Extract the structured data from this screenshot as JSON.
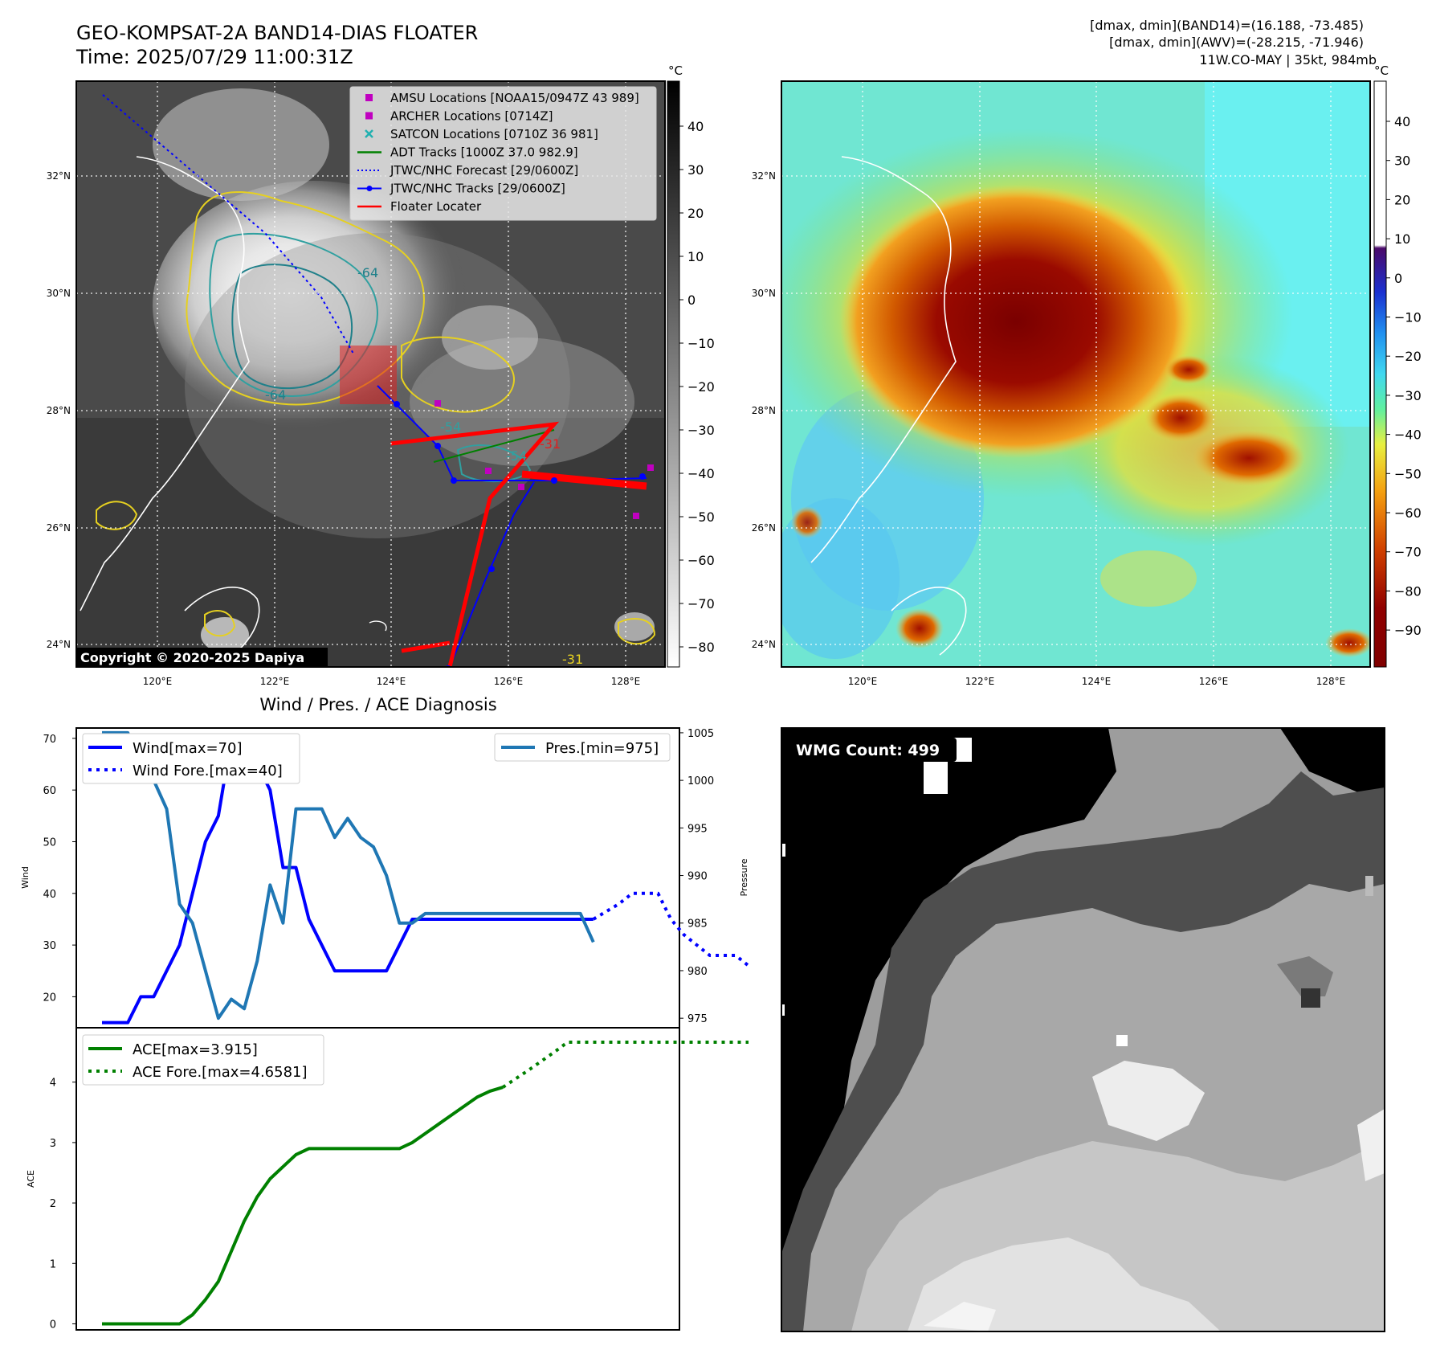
{
  "header": {
    "title_line1": "GEO-KOMPSAT-2A BAND14-DIAS FLOATER",
    "title_line2": "Time: 2025/07/29 11:00:31Z",
    "info_line1": "[dmax, dmin](BAND14)=(16.188, -73.485)",
    "info_line2": "[dmax, dmin](AWV)=(-28.215, -71.946)",
    "info_line3": "11W.CO-MAY | 35kt, 984mb"
  },
  "copyright": "Copyright © 2020-2025 Dapiya",
  "map_axes": {
    "lat_labels": [
      "32°N",
      "30°N",
      "28°N",
      "26°N",
      "24°N"
    ],
    "lon_labels": [
      "120°E",
      "122°E",
      "124°E",
      "126°E",
      "128°E"
    ]
  },
  "colorbar_left": {
    "unit": "°C",
    "ticks": [
      "40",
      "30",
      "20",
      "10",
      "0",
      "−10",
      "−20",
      "−30",
      "−40",
      "−50",
      "−60",
      "−70",
      "−80"
    ]
  },
  "colorbar_right": {
    "unit": "°C",
    "ticks": [
      "40",
      "30",
      "20",
      "10",
      "0",
      "−10",
      "−20",
      "−30",
      "−40",
      "−50",
      "−60",
      "−70",
      "−80",
      "−90"
    ]
  },
  "legend": [
    {
      "label": "AMSU Locations [NOAA15/0947Z 43 989]",
      "marker": "square",
      "color": "#c000c0"
    },
    {
      "label": "ARCHER Locations [0714Z]",
      "marker": "square",
      "color": "#c000c0"
    },
    {
      "label": "SATCON Locations [0710Z 36 981]",
      "marker": "x",
      "color": "#20b0b0"
    },
    {
      "label": "ADT Tracks [1000Z 37.0 982.9]",
      "marker": "line",
      "color": "#008000"
    },
    {
      "label": "JTWC/NHC Forecast [29/0600Z]",
      "marker": "dotted",
      "color": "#0000ff"
    },
    {
      "label": "JTWC/NHC Tracks [29/0600Z]",
      "marker": "line-dot",
      "color": "#0000ff"
    },
    {
      "label": "Floater Locater",
      "marker": "line",
      "color": "#ff0000"
    }
  ],
  "contour_labels": [
    "-64",
    "-64",
    "-54",
    "-54",
    "-31",
    "-31"
  ],
  "wmg": {
    "label": "WMG Count: 499"
  },
  "chart_data": [
    {
      "type": "line",
      "title": "Wind / Pres. / ACE Diagnosis",
      "ylabel": "Wind",
      "ylabel_right": "Pressure",
      "ylim": [
        14,
        72
      ],
      "ylim_right": [
        974,
        1005.5
      ],
      "yticks": [
        20,
        30,
        40,
        50,
        60,
        70
      ],
      "yticks_right": [
        975,
        980,
        985,
        990,
        995,
        1000,
        1005
      ],
      "legend_left": [
        "Wind[max=70]",
        "Wind Fore.[max=40]"
      ],
      "legend_right": [
        "Pres.[min=975]"
      ],
      "series": [
        {
          "name": "Wind[max=70]",
          "color": "#0000ff",
          "style": "solid",
          "x": [
            0,
            1,
            2,
            3,
            4,
            5,
            6,
            7,
            8,
            9,
            10,
            11,
            12,
            13,
            14,
            15,
            16,
            17,
            18,
            19,
            20,
            21,
            22,
            23,
            24,
            25,
            26,
            27,
            28,
            29,
            30,
            31,
            32,
            33,
            34,
            35,
            36,
            37,
            38
          ],
          "values": [
            15,
            15,
            15,
            20,
            20,
            25,
            30,
            40,
            50,
            55,
            70,
            65,
            65,
            60,
            45,
            45,
            35,
            30,
            25,
            25,
            25,
            25,
            25,
            30,
            35,
            35,
            35,
            35,
            35,
            35,
            35,
            35,
            35,
            35,
            35,
            35,
            35,
            35,
            35
          ]
        },
        {
          "name": "Wind Fore.[max=40]",
          "color": "#0000ff",
          "style": "dotted",
          "x": [
            38,
            40,
            41,
            42,
            43,
            44,
            45,
            46,
            47,
            48,
            49,
            50
          ],
          "values": [
            35,
            38,
            40,
            40,
            40,
            35,
            32,
            30,
            28,
            28,
            28,
            26
          ]
        },
        {
          "name": "Pres.[min=975]",
          "color": "#1f77b4",
          "style": "solid",
          "axis": "right",
          "x": [
            0,
            1,
            2,
            3,
            4,
            5,
            6,
            7,
            8,
            9,
            10,
            11,
            12,
            13,
            14,
            15,
            16,
            17,
            18,
            19,
            20,
            21,
            22,
            23,
            24,
            25,
            26,
            27,
            28,
            29,
            30,
            31,
            32,
            33,
            34,
            35,
            36,
            37,
            38
          ],
          "values": [
            1005,
            1005,
            1005,
            1001,
            1000,
            997,
            987,
            985,
            980,
            975,
            977,
            976,
            981,
            989,
            985,
            997,
            997,
            997,
            994,
            996,
            994,
            993,
            990,
            985,
            985,
            986,
            986,
            986,
            986,
            986,
            986,
            986,
            986,
            986,
            986,
            986,
            986,
            986,
            983
          ]
        }
      ]
    },
    {
      "type": "line",
      "ylabel": "ACE",
      "ylim": [
        -0.1,
        4.9
      ],
      "yticks": [
        0,
        1,
        2,
        3,
        4
      ],
      "legend": [
        "ACE[max=3.915]",
        "ACE Fore.[max=4.6581]"
      ],
      "series": [
        {
          "name": "ACE[max=3.915]",
          "color": "#008000",
          "style": "solid",
          "x": [
            0,
            6,
            7,
            8,
            9,
            10,
            11,
            12,
            13,
            14,
            15,
            16,
            17,
            18,
            19,
            20,
            21,
            22,
            23,
            24,
            25,
            26,
            27,
            28,
            29,
            30,
            31
          ],
          "values": [
            0,
            0,
            0.15,
            0.4,
            0.7,
            1.2,
            1.7,
            2.1,
            2.4,
            2.6,
            2.8,
            2.9,
            2.9,
            2.9,
            2.9,
            2.9,
            2.9,
            2.9,
            2.9,
            3.0,
            3.15,
            3.3,
            3.45,
            3.6,
            3.75,
            3.85,
            3.915
          ]
        },
        {
          "name": "ACE Fore.[max=4.6581]",
          "color": "#008000",
          "style": "dotted",
          "x": [
            31,
            33,
            35,
            36,
            37,
            38,
            40,
            42,
            44,
            46,
            48,
            50
          ],
          "values": [
            3.915,
            4.2,
            4.5,
            4.66,
            4.66,
            4.66,
            4.66,
            4.66,
            4.66,
            4.66,
            4.66,
            4.66
          ]
        }
      ]
    }
  ]
}
